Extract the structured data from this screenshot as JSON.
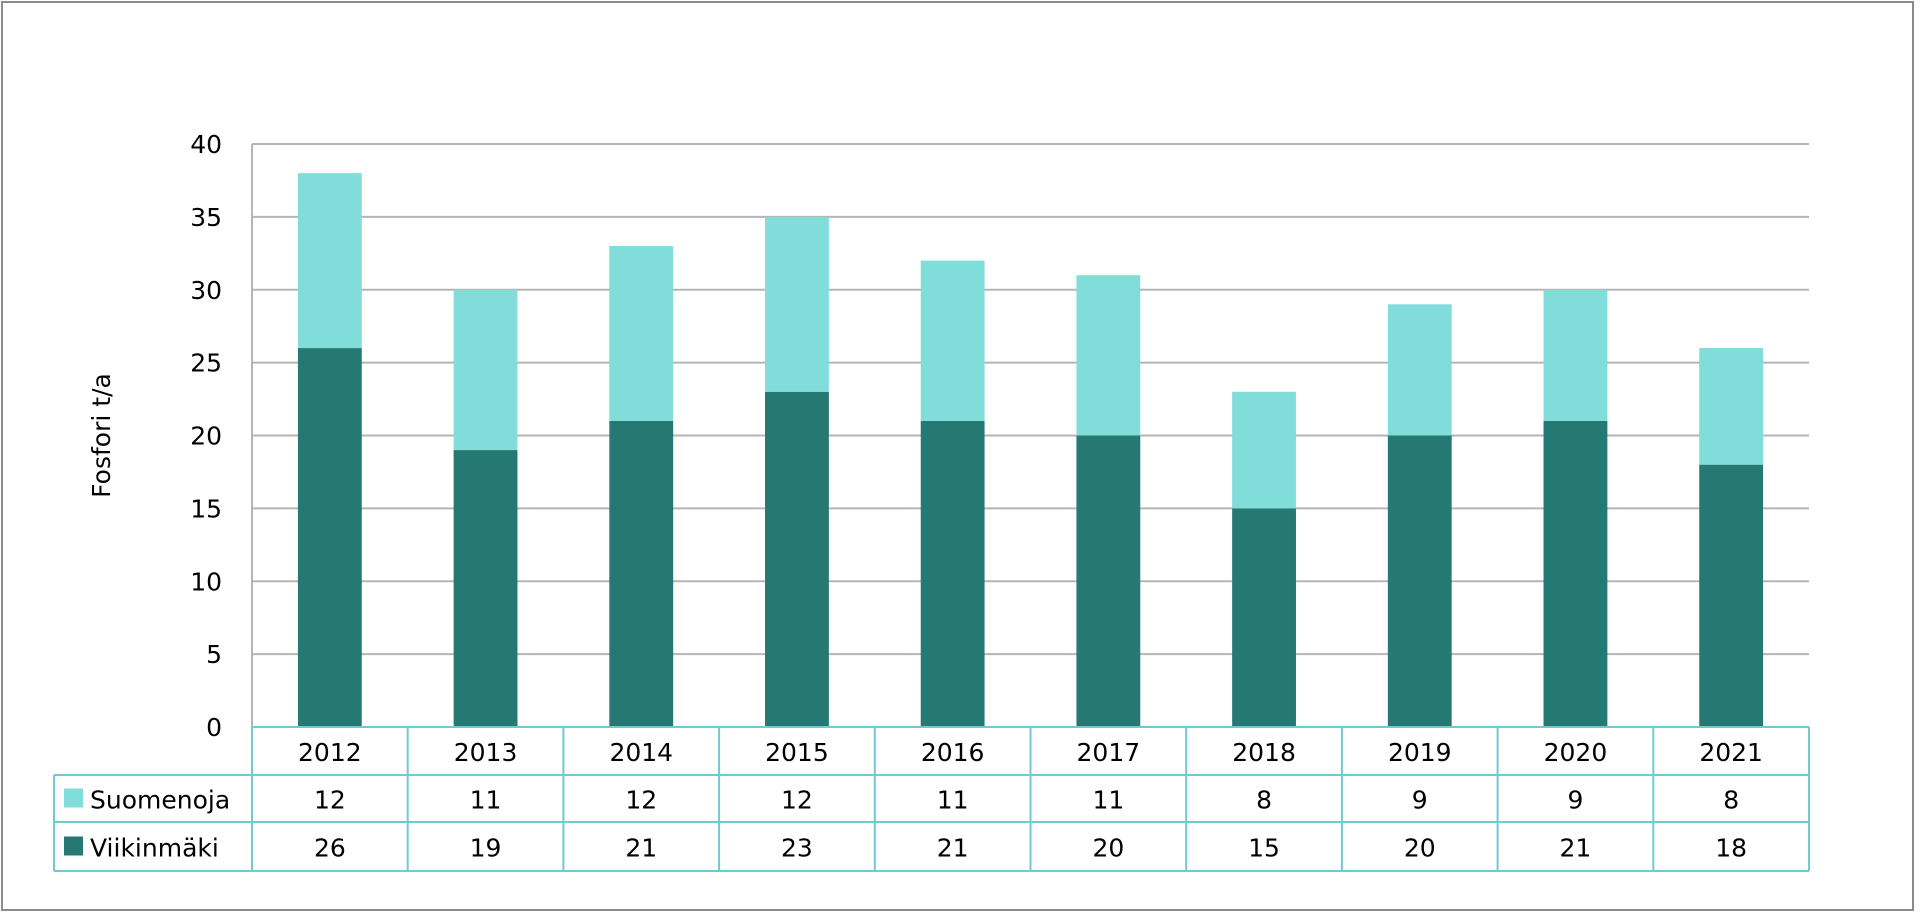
{
  "chart_data": {
    "type": "bar",
    "stacked": true,
    "ylabel": "Fosfori t/a",
    "ylim": [
      0,
      40
    ],
    "yticks": [
      0,
      5,
      10,
      15,
      20,
      25,
      30,
      35,
      40
    ],
    "grid": true,
    "legend": "data-table-bottom",
    "categories": [
      "2012",
      "2013",
      "2014",
      "2015",
      "2016",
      "2017",
      "2018",
      "2019",
      "2020",
      "2021"
    ],
    "series": [
      {
        "name": "Viikinmäki",
        "color": "#267872",
        "values": [
          26,
          19,
          21,
          23,
          21,
          20,
          15,
          20,
          21,
          18
        ]
      },
      {
        "name": "Suomenoja",
        "color": "#80DDDA",
        "values": [
          12,
          11,
          12,
          12,
          11,
          11,
          8,
          9,
          9,
          8
        ]
      }
    ],
    "table_rows": [
      "Suomenoja",
      "Viikinmäki"
    ]
  }
}
